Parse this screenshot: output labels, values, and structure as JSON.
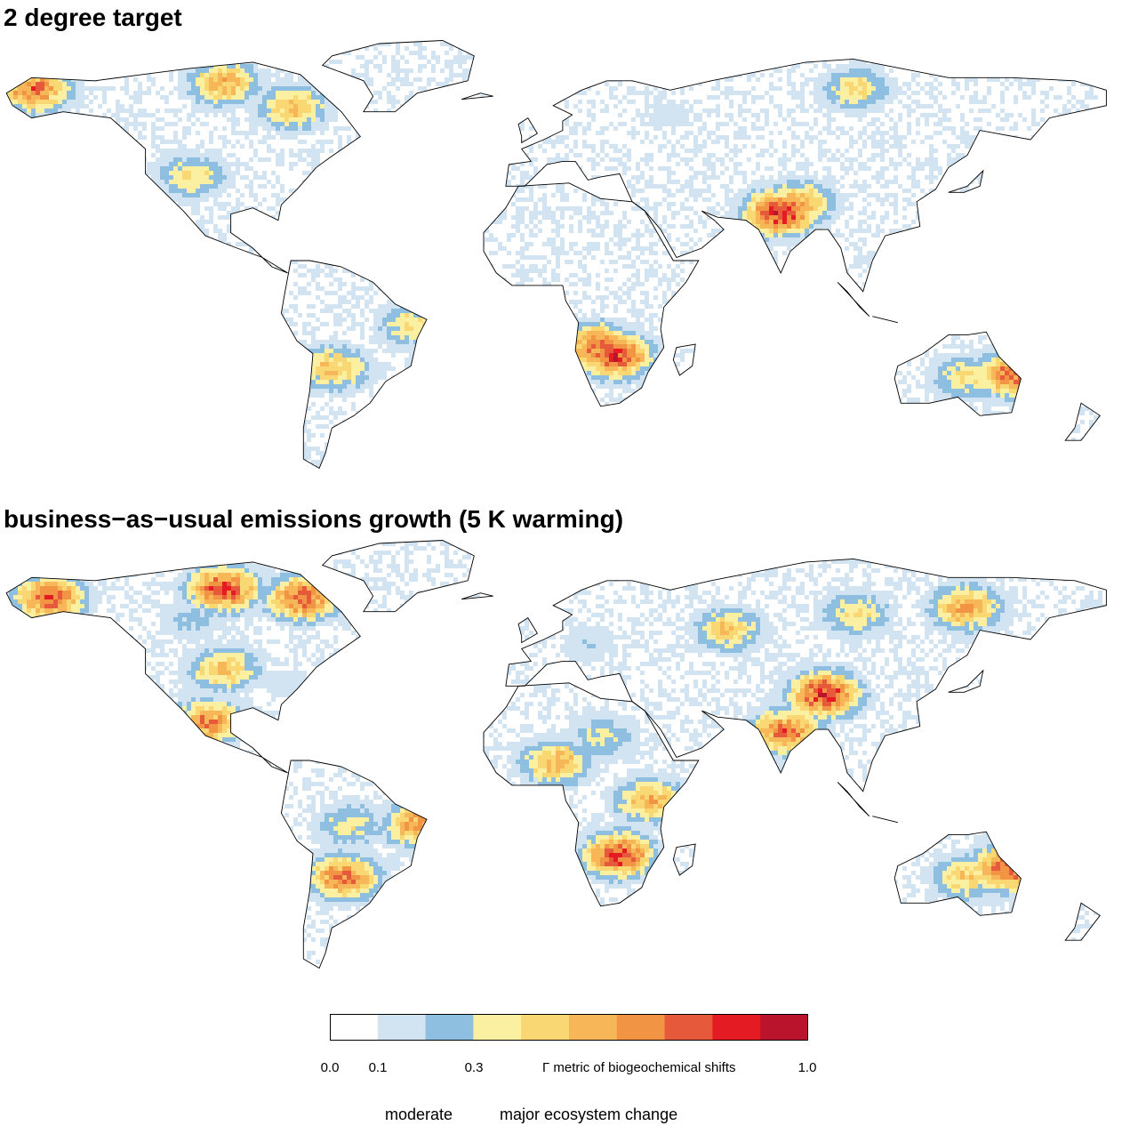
{
  "panels": [
    {
      "title": "2 degree target",
      "hotspots": [
        {
          "lon": -160,
          "lat": 68,
          "value": 0.75
        },
        {
          "lon": -100,
          "lat": 70,
          "value": 0.6
        },
        {
          "lon": -78,
          "lat": 62,
          "value": 0.55
        },
        {
          "lon": -110,
          "lat": 40,
          "value": 0.45
        },
        {
          "lon": 82,
          "lat": 31,
          "value": 0.6
        },
        {
          "lon": 76,
          "lat": 28,
          "value": 0.9
        },
        {
          "lon": 100,
          "lat": 68,
          "value": 0.45
        },
        {
          "lon": -65,
          "lat": -22,
          "value": 0.55
        },
        {
          "lon": -40,
          "lat": -8,
          "value": 0.45
        },
        {
          "lon": 24,
          "lat": -18,
          "value": 0.85
        },
        {
          "lon": 18,
          "lat": -15,
          "value": 0.75
        },
        {
          "lon": 135,
          "lat": -25,
          "value": 0.45
        },
        {
          "lon": 150,
          "lat": -24,
          "value": 0.8
        },
        {
          "lon": 40,
          "lat": 60,
          "value": 0.15
        }
      ]
    },
    {
      "title": "business−as−usual emissions growth (5 K warming)",
      "hotspots": [
        {
          "lon": -100,
          "lat": 68,
          "value": 0.85
        },
        {
          "lon": -75,
          "lat": 65,
          "value": 0.8
        },
        {
          "lon": -155,
          "lat": 65,
          "value": 0.8
        },
        {
          "lon": -110,
          "lat": 58,
          "value": 0.25
        },
        {
          "lon": -100,
          "lat": 42,
          "value": 0.55
        },
        {
          "lon": -105,
          "lat": 25,
          "value": 0.7
        },
        {
          "lon": -80,
          "lat": 38,
          "value": 0.15
        },
        {
          "lon": -60,
          "lat": -8,
          "value": 0.4
        },
        {
          "lon": -62,
          "lat": -25,
          "value": 0.75
        },
        {
          "lon": -38,
          "lat": -8,
          "value": 0.7
        },
        {
          "lon": 60,
          "lat": 55,
          "value": 0.5
        },
        {
          "lon": 100,
          "lat": 60,
          "value": 0.45
        },
        {
          "lon": 90,
          "lat": 34,
          "value": 0.9
        },
        {
          "lon": 78,
          "lat": 22,
          "value": 0.75
        },
        {
          "lon": 135,
          "lat": 62,
          "value": 0.65
        },
        {
          "lon": 15,
          "lat": 50,
          "value": 0.2
        },
        {
          "lon": 5,
          "lat": 12,
          "value": 0.6
        },
        {
          "lon": 35,
          "lat": 0,
          "value": 0.6
        },
        {
          "lon": 25,
          "lat": -18,
          "value": 0.85
        },
        {
          "lon": 20,
          "lat": 20,
          "value": 0.35
        },
        {
          "lon": 135,
          "lat": -25,
          "value": 0.5
        },
        {
          "lon": 148,
          "lat": -22,
          "value": 0.85
        }
      ]
    }
  ],
  "legend": {
    "ticks": [
      {
        "value": 0.0,
        "label": "0.0"
      },
      {
        "value": 0.1,
        "label": "0.1"
      },
      {
        "value": 0.3,
        "label": "0.3"
      },
      {
        "value": 1.0,
        "label": "1.0"
      }
    ],
    "caption": "Γ metric of biogeochemical shifts",
    "label_moderate": "moderate",
    "label_major": "major ecosystem change",
    "bins": [
      {
        "from": 0.0,
        "to": 0.1,
        "color": "#ffffff"
      },
      {
        "from": 0.1,
        "to": 0.2,
        "color": "#d2e4f2"
      },
      {
        "from": 0.2,
        "to": 0.3,
        "color": "#8ebfe0"
      },
      {
        "from": 0.3,
        "to": 0.4,
        "color": "#fbf0a2"
      },
      {
        "from": 0.4,
        "to": 0.5,
        "color": "#f9d874"
      },
      {
        "from": 0.5,
        "to": 0.6,
        "color": "#f7b657"
      },
      {
        "from": 0.6,
        "to": 0.7,
        "color": "#f19444"
      },
      {
        "from": 0.7,
        "to": 0.8,
        "color": "#e65a3b"
      },
      {
        "from": 0.8,
        "to": 0.9,
        "color": "#e41b23"
      },
      {
        "from": 0.9,
        "to": 1.0,
        "color": "#b9142b"
      }
    ]
  }
}
